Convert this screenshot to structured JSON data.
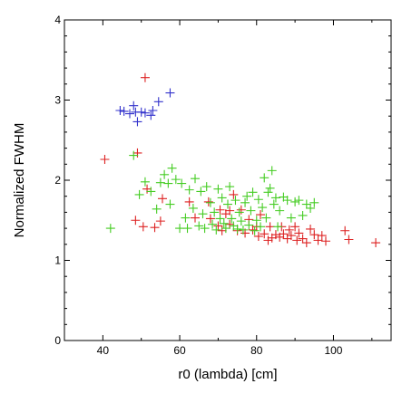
{
  "chart_data": {
    "type": "scatter",
    "title": "",
    "xlabel": "r0 (lambda) [cm]",
    "ylabel": "Normalized FWHM",
    "xlim": [
      30,
      115
    ],
    "ylim": [
      0,
      4
    ],
    "xticks": [
      "40",
      "60",
      "80",
      "100"
    ],
    "yticks": [
      "0",
      "1",
      "2",
      "3",
      "4"
    ],
    "grid": false,
    "marker": "+",
    "series": [
      {
        "color": "#3333cc",
        "points": [
          [
            44.5,
            2.87
          ],
          [
            45.5,
            2.86
          ],
          [
            47.0,
            2.83
          ],
          [
            48.0,
            2.93
          ],
          [
            48.5,
            2.85
          ],
          [
            49.0,
            2.73
          ],
          [
            50.0,
            2.85
          ],
          [
            51.0,
            2.84
          ],
          [
            52.5,
            2.81
          ],
          [
            53.0,
            2.87
          ],
          [
            54.5,
            2.98
          ],
          [
            57.5,
            3.09
          ]
        ]
      },
      {
        "color": "#dd2222",
        "points": [
          [
            40.5,
            2.26
          ],
          [
            48.5,
            1.5
          ],
          [
            49.0,
            2.34
          ],
          [
            50.5,
            1.42
          ],
          [
            51.0,
            3.28
          ],
          [
            51.5,
            1.89
          ],
          [
            53.5,
            1.41
          ],
          [
            55.0,
            1.49
          ],
          [
            55.5,
            1.77
          ],
          [
            62.5,
            1.73
          ],
          [
            64.0,
            1.53
          ],
          [
            67.5,
            1.73
          ],
          [
            68.0,
            1.52
          ],
          [
            70.0,
            1.43
          ],
          [
            70.5,
            1.63
          ],
          [
            71.0,
            1.37
          ],
          [
            72.0,
            1.58
          ],
          [
            73.0,
            1.45
          ],
          [
            73.0,
            1.62
          ],
          [
            74.0,
            1.82
          ],
          [
            75.0,
            1.37
          ],
          [
            76.0,
            1.63
          ],
          [
            77.0,
            1.34
          ],
          [
            78.0,
            1.51
          ],
          [
            79.0,
            1.38
          ],
          [
            80.0,
            1.42
          ],
          [
            80.5,
            1.3
          ],
          [
            81.0,
            1.57
          ],
          [
            82.0,
            1.33
          ],
          [
            83.0,
            1.25
          ],
          [
            83.5,
            1.42
          ],
          [
            84.0,
            1.28
          ],
          [
            85.0,
            1.32
          ],
          [
            86.0,
            1.29
          ],
          [
            86.5,
            1.42
          ],
          [
            87.0,
            1.33
          ],
          [
            88.0,
            1.27
          ],
          [
            88.5,
            1.38
          ],
          [
            89.0,
            1.31
          ],
          [
            90.0,
            1.42
          ],
          [
            90.5,
            1.25
          ],
          [
            91.0,
            1.34
          ],
          [
            92.0,
            1.27
          ],
          [
            93.0,
            1.22
          ],
          [
            94.0,
            1.39
          ],
          [
            95.0,
            1.32
          ],
          [
            96.0,
            1.25
          ],
          [
            97.0,
            1.31
          ],
          [
            98.0,
            1.24
          ],
          [
            103.0,
            1.37
          ],
          [
            104.0,
            1.26
          ],
          [
            111.0,
            1.22
          ]
        ]
      },
      {
        "color": "#44cc22",
        "points": [
          [
            42.0,
            1.4
          ],
          [
            48.0,
            2.31
          ],
          [
            49.5,
            1.82
          ],
          [
            51.0,
            1.98
          ],
          [
            52.5,
            1.86
          ],
          [
            54.0,
            1.64
          ],
          [
            55.0,
            1.97
          ],
          [
            56.0,
            2.07
          ],
          [
            57.0,
            1.96
          ],
          [
            57.5,
            1.7
          ],
          [
            58.0,
            2.15
          ],
          [
            59.0,
            2.01
          ],
          [
            60.0,
            1.4
          ],
          [
            60.5,
            1.96
          ],
          [
            61.5,
            1.53
          ],
          [
            62.0,
            1.4
          ],
          [
            62.5,
            1.88
          ],
          [
            63.5,
            1.65
          ],
          [
            64.0,
            2.02
          ],
          [
            65.0,
            1.43
          ],
          [
            65.5,
            1.86
          ],
          [
            66.0,
            1.58
          ],
          [
            66.5,
            1.4
          ],
          [
            67.0,
            1.92
          ],
          [
            68.0,
            1.72
          ],
          [
            68.5,
            1.45
          ],
          [
            69.0,
            1.6
          ],
          [
            69.5,
            1.38
          ],
          [
            70.0,
            1.89
          ],
          [
            70.5,
            1.52
          ],
          [
            71.0,
            1.78
          ],
          [
            71.5,
            1.46
          ],
          [
            72.0,
            1.4
          ],
          [
            72.5,
            1.7
          ],
          [
            73.0,
            1.92
          ],
          [
            73.5,
            1.52
          ],
          [
            74.0,
            1.43
          ],
          [
            74.5,
            1.75
          ],
          [
            75.0,
            1.39
          ],
          [
            75.5,
            1.6
          ],
          [
            76.0,
            1.49
          ],
          [
            76.5,
            1.38
          ],
          [
            77.0,
            1.72
          ],
          [
            77.5,
            1.8
          ],
          [
            78.0,
            1.44
          ],
          [
            78.5,
            1.62
          ],
          [
            79.0,
            1.85
          ],
          [
            79.5,
            1.37
          ],
          [
            80.0,
            1.5
          ],
          [
            80.5,
            1.76
          ],
          [
            81.0,
            1.42
          ],
          [
            81.5,
            1.66
          ],
          [
            82.0,
            2.03
          ],
          [
            82.5,
            1.53
          ],
          [
            83.0,
            1.85
          ],
          [
            83.5,
            1.9
          ],
          [
            84.0,
            2.12
          ],
          [
            84.5,
            1.7
          ],
          [
            85.0,
            1.78
          ],
          [
            85.5,
            1.42
          ],
          [
            86.0,
            1.62
          ],
          [
            87.0,
            1.79
          ],
          [
            88.0,
            1.75
          ],
          [
            89.0,
            1.53
          ],
          [
            90.0,
            1.73
          ],
          [
            91.0,
            1.75
          ],
          [
            92.0,
            1.56
          ],
          [
            93.0,
            1.7
          ],
          [
            94.0,
            1.65
          ],
          [
            95.0,
            1.72
          ]
        ]
      }
    ]
  }
}
